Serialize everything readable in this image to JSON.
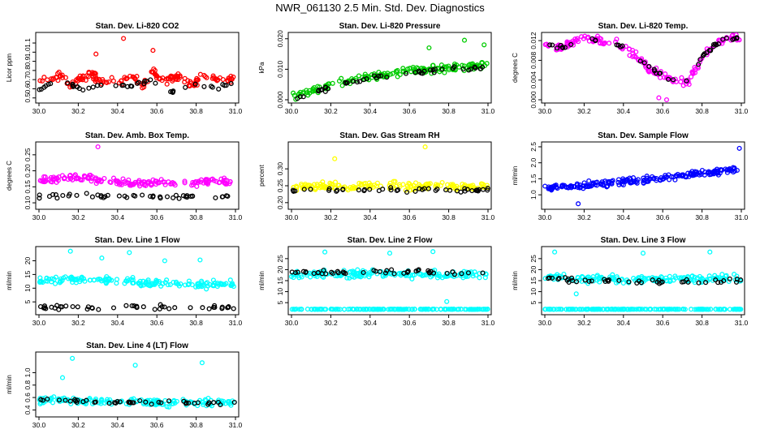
{
  "title": "NWR_061130  2.5 Min. Std. Dev. Diagnostics",
  "colors": {
    "red": "#ff0000",
    "green": "#00cc00",
    "magenta": "#ff00ff",
    "yellow": "#ffff00",
    "blue": "#0000ff",
    "cyan": "#00ffff",
    "black": "#000000"
  },
  "chart_data": [
    {
      "type": "scatter",
      "title": "Stan. Dev. Li-820 CO2",
      "ylabel": "Licor ppm",
      "xlim": [
        30.0,
        31.0
      ],
      "ylim": [
        0.48,
        1.18
      ],
      "xticks": [
        "30.0",
        "30.2",
        "30.4",
        "30.6",
        "30.8",
        "31.0"
      ],
      "yticks": [
        "0.5",
        "0.6",
        "0.7",
        "0.8",
        "0.9",
        "1.0",
        "1.1"
      ],
      "series": [
        {
          "name": "main",
          "color": "red",
          "values": [
            0.72,
            0.68,
            0.75,
            0.63,
            0.7,
            0.78,
            0.66,
            0.71,
            0.69,
            0.74,
            0.62,
            0.8,
            0.67,
            0.73,
            0.7,
            0.65,
            0.76,
            0.71,
            0.68,
            0.72
          ]
        },
        {
          "name": "flagged",
          "color": "black",
          "values": [
            0.6,
            0.72,
            0.58,
            0.66,
            0.62,
            0.7,
            0.56,
            0.64,
            0.61,
            0.67
          ]
        }
      ],
      "outliers": [
        {
          "x": 30.43,
          "y": 1.15
        },
        {
          "x": 30.58,
          "y": 1.02
        },
        {
          "x": 30.29,
          "y": 0.98
        }
      ]
    },
    {
      "type": "scatter",
      "title": "Stan. Dev. Li-820 Pressure",
      "ylabel": "kPa",
      "xlim": [
        30.0,
        31.0
      ],
      "ylim": [
        0.0,
        0.021
      ],
      "xticks": [
        "30.0",
        "30.2",
        "30.4",
        "30.6",
        "30.8",
        "31.0"
      ],
      "yticks": [
        "0.000",
        "0.010",
        "0.020"
      ],
      "series": [
        {
          "name": "main",
          "color": "green",
          "trend": [
            0.001,
            0.003,
            0.005,
            0.006,
            0.0075,
            0.009,
            0.0095,
            0.01,
            0.0105,
            0.011,
            0.011
          ]
        },
        {
          "name": "flagged",
          "color": "black",
          "trend": [
            0.0,
            0.002,
            0.004,
            0.006,
            0.007,
            0.008,
            0.009,
            0.0095,
            0.01,
            0.01,
            0.011
          ]
        }
      ],
      "outliers": [
        {
          "x": 30.88,
          "y": 0.0195
        },
        {
          "x": 30.98,
          "y": 0.018
        },
        {
          "x": 30.7,
          "y": 0.017
        }
      ]
    },
    {
      "type": "scatter",
      "title": "Stan. Dev. Li-820 Temp.",
      "ylabel": "degrees C",
      "xlim": [
        30.0,
        31.0
      ],
      "ylim": [
        0.0,
        0.013
      ],
      "xticks": [
        "30.0",
        "30.2",
        "30.4",
        "30.6",
        "30.8",
        "31.0"
      ],
      "yticks": [
        "0.000",
        "0.004",
        "0.008",
        "0.012"
      ],
      "series": [
        {
          "name": "main",
          "color": "magenta",
          "trend": [
            0.011,
            0.0105,
            0.0125,
            0.012,
            0.0115,
            0.009,
            0.006,
            0.004,
            0.0035,
            0.0095,
            0.0125,
            0.0125
          ]
        },
        {
          "name": "flagged",
          "color": "black",
          "trend": [
            0.011,
            0.0105,
            0.0125,
            0.012,
            0.0115,
            0.009,
            0.006,
            0.004,
            0.0035,
            0.0095,
            0.0125,
            0.0125
          ]
        }
      ],
      "outliers": [
        {
          "x": 30.58,
          "y": 0.0004
        },
        {
          "x": 30.62,
          "y": 0.0
        }
      ]
    },
    {
      "type": "scatter",
      "title": "Stan. Dev. Amb. Box Temp.",
      "ylabel": "degrees C",
      "xlim": [
        30.0,
        31.0
      ],
      "ylim": [
        0.09,
        0.28
      ],
      "xticks": [
        "30.0",
        "30.2",
        "30.4",
        "30.6",
        "30.8",
        "31.0"
      ],
      "yticks": [
        "0.10",
        "0.15",
        "0.20",
        "0.25"
      ],
      "series": [
        {
          "name": "main",
          "color": "magenta",
          "trend": [
            0.17,
            0.175,
            0.18,
            0.17,
            0.165,
            0.16,
            0.165,
            0.16,
            0.16,
            0.17,
            0.16
          ]
        },
        {
          "name": "flagged",
          "color": "black",
          "trend": [
            0.12,
            0.12,
            0.125,
            0.12,
            0.12,
            0.12,
            0.12,
            0.12,
            0.12,
            0.12,
            0.12
          ]
        }
      ],
      "outliers": [
        {
          "x": 30.3,
          "y": 0.275
        }
      ]
    },
    {
      "type": "scatter",
      "title": "Stan. Dev. Gas Stream RH",
      "ylabel": "percent",
      "xlim": [
        30.0,
        31.0
      ],
      "ylim": [
        0.19,
        0.37
      ],
      "xticks": [
        "30.0",
        "30.2",
        "30.4",
        "30.6",
        "30.8",
        "31.0"
      ],
      "yticks": [
        "0.20",
        "0.25",
        "0.30"
      ],
      "series": [
        {
          "name": "main",
          "color": "yellow",
          "trend": [
            0.245,
            0.25,
            0.25,
            0.245,
            0.25,
            0.25,
            0.245,
            0.25,
            0.25,
            0.245,
            0.25
          ]
        },
        {
          "name": "flagged",
          "color": "black",
          "trend": [
            0.235,
            0.24,
            0.24,
            0.235,
            0.24,
            0.24,
            0.235,
            0.24,
            0.24,
            0.235,
            0.24
          ]
        }
      ],
      "outliers": [
        {
          "x": 30.68,
          "y": 0.365
        },
        {
          "x": 30.22,
          "y": 0.33
        }
      ]
    },
    {
      "type": "scatter",
      "title": "Stan. Dev. Sample Flow",
      "ylabel": "ml/min",
      "xlim": [
        30.0,
        31.0
      ],
      "ylim": [
        0.65,
        2.55
      ],
      "xticks": [
        "30.0",
        "30.2",
        "30.4",
        "30.6",
        "30.8",
        "31.0"
      ],
      "yticks": [
        "1.0",
        "1.5",
        "2.0",
        "2.5"
      ],
      "series": [
        {
          "name": "main",
          "color": "blue",
          "trend": [
            1.2,
            1.25,
            1.3,
            1.35,
            1.4,
            1.45,
            1.5,
            1.6,
            1.7,
            1.75,
            1.8
          ]
        },
        {
          "name": "flagged",
          "color": "blue",
          "trend": [
            1.2,
            1.25,
            1.3,
            1.35,
            1.4,
            1.45,
            1.5,
            1.6,
            1.7,
            1.75,
            1.8
          ]
        }
      ],
      "outliers": [
        {
          "x": 30.99,
          "y": 2.45
        },
        {
          "x": 30.17,
          "y": 0.72
        }
      ]
    },
    {
      "type": "scatter",
      "title": "Stan. Dev. Line 1 Flow",
      "ylabel": "ml/min",
      "xlim": [
        30.0,
        31.0
      ],
      "ylim": [
        1.5,
        24.0
      ],
      "xticks": [
        "30.0",
        "30.2",
        "30.4",
        "30.6",
        "30.8",
        "31.0"
      ],
      "yticks": [
        "5",
        "10",
        "15",
        "20"
      ],
      "series": [
        {
          "name": "main",
          "color": "cyan",
          "trend": [
            13.0,
            13.2,
            13.0,
            12.8,
            12.6,
            12.2,
            11.8,
            11.6,
            11.5,
            11.4,
            11.3
          ]
        },
        {
          "name": "flagged",
          "color": "black",
          "trend": [
            3.0,
            3.0,
            3.0,
            3.0,
            3.0,
            3.1,
            3.1,
            3.1,
            3.1,
            3.1,
            3.2
          ]
        }
      ],
      "outliers": [
        {
          "x": 30.16,
          "y": 23.5
        },
        {
          "x": 30.46,
          "y": 23.0
        },
        {
          "x": 30.32,
          "y": 21.0
        },
        {
          "x": 30.64,
          "y": 20.0
        },
        {
          "x": 30.82,
          "y": 20.3
        }
      ]
    },
    {
      "type": "scatter",
      "title": "Stan. Dev. Line 2 Flow",
      "ylabel": "ml/min",
      "xlim": [
        30.0,
        31.0
      ],
      "ylim": [
        1.0,
        29.0
      ],
      "xticks": [
        "30.0",
        "30.2",
        "30.4",
        "30.6",
        "30.8",
        "31.0"
      ],
      "yticks": [
        "5",
        "10",
        "15",
        "20",
        "25"
      ],
      "series": [
        {
          "name": "main",
          "color": "cyan",
          "trend": [
            17.5,
            18.0,
            18.0,
            18.0,
            18.2,
            18.0,
            18.0,
            17.8,
            17.8,
            17.8,
            17.5
          ]
        },
        {
          "name": "flagged",
          "color": "black",
          "trend": [
            19.0,
            18.8,
            18.8,
            18.9,
            19.0,
            19.1,
            19.0,
            19.0,
            18.9,
            18.8,
            18.8
          ]
        },
        {
          "name": "baseline",
          "color": "cyan",
          "trend": [
            2.0,
            2.0,
            2.0,
            2.0,
            2.0,
            2.0,
            2.0,
            2.0,
            2.0,
            2.0,
            2.0
          ]
        }
      ],
      "outliers": [
        {
          "x": 30.17,
          "y": 28.0
        },
        {
          "x": 30.5,
          "y": 27.5
        },
        {
          "x": 30.72,
          "y": 28.2
        },
        {
          "x": 30.79,
          "y": 5.5
        }
      ]
    },
    {
      "type": "scatter",
      "title": "Stan. Dev. Line 3 Flow",
      "ylabel": "ml/min",
      "xlim": [
        30.0,
        31.0
      ],
      "ylim": [
        1.0,
        29.0
      ],
      "xticks": [
        "30.0",
        "30.2",
        "30.4",
        "30.6",
        "30.8",
        "31.0"
      ],
      "yticks": [
        "5",
        "10",
        "15",
        "20",
        "25"
      ],
      "series": [
        {
          "name": "main",
          "color": "cyan",
          "trend": [
            16.5,
            16.0,
            15.8,
            15.5,
            15.5,
            15.6,
            15.6,
            15.7,
            15.8,
            15.8,
            16.0
          ]
        },
        {
          "name": "flagged",
          "color": "black",
          "trend": [
            16.5,
            15.5,
            15.0,
            14.8,
            14.6,
            14.5,
            14.5,
            14.6,
            14.8,
            15.0,
            15.2
          ]
        },
        {
          "name": "baseline",
          "color": "cyan",
          "trend": [
            2.0,
            2.0,
            2.0,
            2.0,
            2.0,
            2.0,
            2.0,
            2.0,
            2.0,
            2.0,
            2.0
          ]
        }
      ],
      "outliers": [
        {
          "x": 30.05,
          "y": 28.0
        },
        {
          "x": 30.5,
          "y": 27.5
        },
        {
          "x": 30.84,
          "y": 28.0
        },
        {
          "x": 30.16,
          "y": 9.0
        }
      ]
    },
    {
      "type": "scatter",
      "title": "Stan. Dev. Line 4 (LT) Flow",
      "ylabel": "ml/min",
      "xlim": [
        30.0,
        31.0
      ],
      "ylim": [
        0.34,
        1.28
      ],
      "xticks": [
        "30.0",
        "30.2",
        "30.4",
        "30.6",
        "30.8",
        "31.0"
      ],
      "yticks": [
        "0.4",
        "0.6",
        "0.8",
        "1.0"
      ],
      "series": [
        {
          "name": "main",
          "color": "cyan",
          "trend": [
            0.55,
            0.56,
            0.54,
            0.53,
            0.54,
            0.53,
            0.52,
            0.52,
            0.52,
            0.52,
            0.52
          ]
        },
        {
          "name": "flagged",
          "color": "black",
          "trend": [
            0.56,
            0.55,
            0.54,
            0.53,
            0.53,
            0.52,
            0.52,
            0.52,
            0.51,
            0.51,
            0.52
          ]
        }
      ],
      "outliers": [
        {
          "x": 30.17,
          "y": 1.23
        },
        {
          "x": 30.49,
          "y": 1.12
        },
        {
          "x": 30.83,
          "y": 1.16
        },
        {
          "x": 30.12,
          "y": 0.92
        }
      ]
    }
  ]
}
